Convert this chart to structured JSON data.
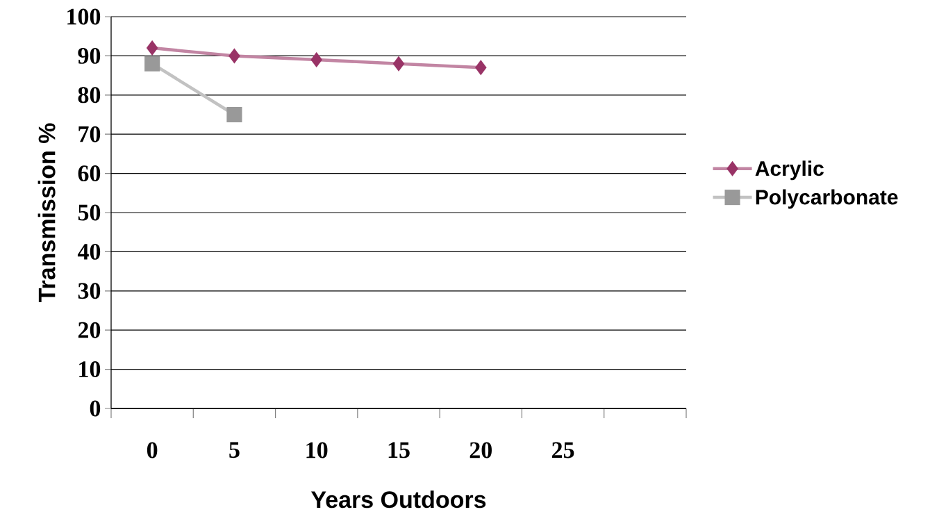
{
  "chart_data": {
    "type": "line",
    "xlabel": "Years Outdoors",
    "ylabel": "Transmission %",
    "categories": [
      "0",
      "5",
      "10",
      "15",
      "20",
      "25",
      null
    ],
    "series": [
      {
        "name": "Acrylic",
        "color": "#993366",
        "marker": "diamond",
        "values": [
          92,
          90,
          89,
          88,
          87,
          null,
          null
        ]
      },
      {
        "name": "Polycarbonate",
        "color": "#999999",
        "marker": "square",
        "values": [
          88,
          75,
          null,
          null,
          null,
          null,
          null
        ]
      }
    ],
    "ylim": [
      0,
      100
    ],
    "yticks": [
      0,
      10,
      20,
      30,
      40,
      50,
      60,
      70,
      80,
      90,
      100
    ],
    "grid": "y",
    "legend": "right"
  }
}
